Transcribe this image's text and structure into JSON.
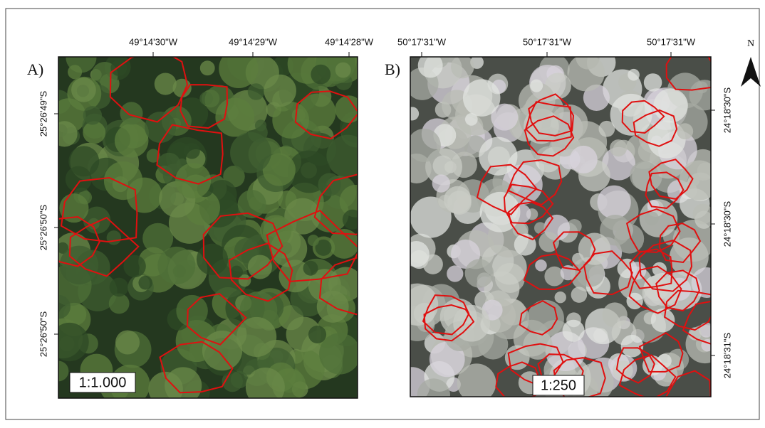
{
  "panels": [
    {
      "label": "A)",
      "top_coords": [
        "49°14'30\"W",
        "49°14'29\"W",
        "49°14'28\"W"
      ],
      "side_coords": [
        "25°26'49\"S",
        "25°26'50\"S",
        "25°26'50\"S"
      ],
      "scale": "1:1.000"
    },
    {
      "label": "B)",
      "top_coords": [
        "50°17'31\"W",
        "50°17'31\"W",
        "50°17'31\"W"
      ],
      "side_coords": [
        "24°18'30\"S",
        "24°18'30\"S",
        "24°18'31\"S"
      ],
      "scale": "1:250"
    }
  ],
  "north": "N"
}
